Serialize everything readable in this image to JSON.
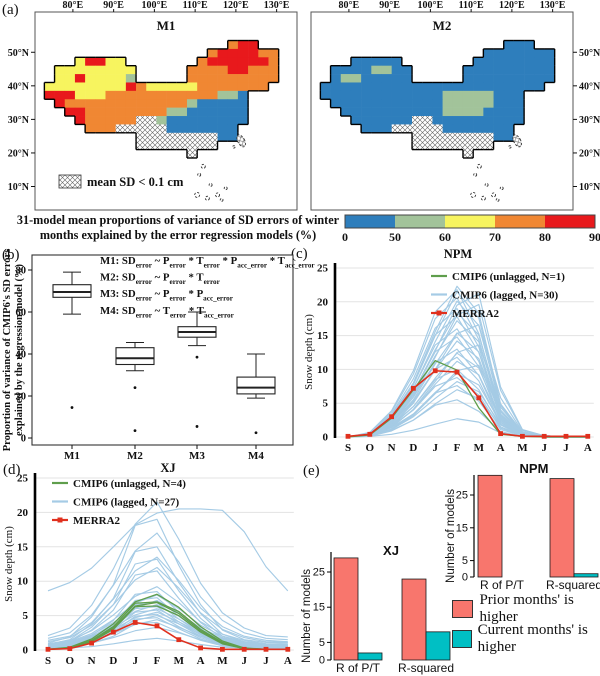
{
  "figure": {
    "panel_labels": {
      "a": "(a)",
      "b": "(b)",
      "c": "(c)",
      "d": "(d)",
      "e": "(e)"
    },
    "caption": {
      "line1": "31-model mean proportions of variance of SD errors of winter",
      "line2": "months explained by the error regression models (%)"
    }
  },
  "e_legend": [
    {
      "label": "Prior months' is higher",
      "color": "#f8766d"
    },
    {
      "label": "Current months' is higher",
      "color": "#00bfc4"
    }
  ],
  "chart_data": [
    {
      "id": "map_m1",
      "type": "heatmap",
      "panel": "a",
      "title": "M1",
      "legend": "mean SD < 0.1 cm",
      "lat_side": "left",
      "lon_ticks": [
        {
          "v": 80,
          "t": "80°E"
        },
        {
          "v": 90,
          "t": "90°E"
        },
        {
          "v": 100,
          "t": "100°E"
        },
        {
          "v": 110,
          "t": "110°E"
        },
        {
          "v": 120,
          "t": "120°E"
        },
        {
          "v": 130,
          "t": "130°E"
        }
      ],
      "lat_ticks": [
        {
          "v": 50,
          "t": "50°N"
        },
        {
          "v": 40,
          "t": "40°N"
        },
        {
          "v": 30,
          "t": "30°N"
        },
        {
          "v": 20,
          "t": "20°N"
        },
        {
          "v": 10,
          "t": "10°N"
        }
      ],
      "palette": {
        "B": "#2e7ebc",
        "G": "#a2c39a",
        "Y": "#f7f45f",
        "O": "#f08733",
        "R": "#e8191c",
        "H": "hatch"
      },
      "legend_note": "H cells = mean SD < 0.1 cm (hatched)",
      "grid": [
        "..................ORR...",
        "................ORRRROO.",
        "...YRRYY.......ORRRRRRO.",
        ".YYYYYYYY.....OOOORROOO.",
        ".YYRYYYYG.....OOOOOOOOO.",
        "YYYYYYYYROYYYYYOOOOOOO..",
        "RRRYYYOOOOOOOOOOOGGB....",
        ".ROOOOOOOOOOOOGBBBBB....",
        "..RROOOOOOOOGGBBBBBB....",
        "...ROOOOOHHGBBBBBBBB....",
        "....OOOHHHHHBBBBBBB.....",
        ".........HHHHHHHHBB.....",
        ".........HHHHHHHH.......",
        "..............H........."
      ]
    },
    {
      "id": "map_m2",
      "type": "heatmap",
      "panel": "a",
      "title": "M2",
      "legend": "",
      "lat_side": "right",
      "lon_ticks": [
        {
          "v": 80,
          "t": "80°E"
        },
        {
          "v": 90,
          "t": "90°E"
        },
        {
          "v": 100,
          "t": "100°E"
        },
        {
          "v": 110,
          "t": "110°E"
        },
        {
          "v": 120,
          "t": "120°E"
        },
        {
          "v": 130,
          "t": "130°E"
        }
      ],
      "lat_ticks": [
        {
          "v": 50,
          "t": "50°N"
        },
        {
          "v": 40,
          "t": "40°N"
        },
        {
          "v": 30,
          "t": "30°N"
        },
        {
          "v": 20,
          "t": "20°N"
        },
        {
          "v": 10,
          "t": "10°N"
        }
      ],
      "palette": {
        "B": "#2e7ebc",
        "G": "#a2c39a",
        "Y": "#f7f45f",
        "O": "#f08733",
        "R": "#e8191c",
        "H": "hatch"
      },
      "grid": [
        "..................BBB...",
        "................BBBBBBB.",
        "...BBBBB.......BBBBBBBB.",
        ".BBBBGGBB.....BBBBBBBBB.",
        ".BGGBBBBB.....BBBBBBBBB.",
        "BBBBBBBBBBBBBBBBBBBBBB..",
        "BBBBBBBBBBBBGGGGGBBB....",
        ".BBBBBBBBBBBGGGGGBBB....",
        "..BBBBBBBBBBGGGGBBBB....",
        "...BBBBBBHHBBBBBBBBB....",
        "....BBBHHHHHBBBBBBB.....",
        ".........HHHHHHHHBB.....",
        ".........HHHHHHHH.......",
        "..............H........."
      ]
    },
    {
      "id": "colorbar",
      "type": "colorbar",
      "ticks": [
        "0",
        "50",
        "60",
        "70",
        "80",
        "90"
      ],
      "colors": [
        "#2e7ebc",
        "#a2c39a",
        "#f7f45f",
        "#f08733",
        "#e8191c"
      ]
    },
    {
      "id": "box",
      "type": "boxplot",
      "panel": "b",
      "categories": [
        "M1",
        "M2",
        "M3",
        "M4"
      ],
      "stats": [
        {
          "lo": 59,
          "q1": 67,
          "med": 69.5,
          "q3": 73,
          "hi": 79,
          "out": [
            14.5
          ]
        },
        {
          "lo": 32,
          "q1": 35,
          "med": 38,
          "q3": 43,
          "hi": 45.5,
          "out": [
            24,
            3.5
          ]
        },
        {
          "lo": 44,
          "q1": 48,
          "med": 50.5,
          "q3": 53,
          "hi": 60,
          "out": [
            38.5,
            5.5
          ]
        },
        {
          "lo": 19,
          "q1": 21,
          "med": 24,
          "q3": 29,
          "hi": 40,
          "out": [
            2.5
          ]
        }
      ],
      "yticks": [
        0,
        20,
        40,
        60,
        80
      ],
      "ylabel_line1": "Proportion of variance of CMIP6's SD errors",
      "ylabel_line2": "explained by the regression model (%)",
      "formulas": [
        "M1: SD_{error} ~ P_{error} * T_{error} * P_{acc_error} * T_{acc_error}",
        "M2: SD_{error} ~ P_{error} * T_{error}",
        "M3: SD_{error} ~ P_{error} * P_{acc_error}",
        "M4: SD_{error} ~ T_{error} * T_{acc_error}"
      ]
    },
    {
      "id": "npm_line",
      "type": "line",
      "panel": "c",
      "title": "NPM",
      "ylabel": "Snow depth (cm)",
      "yticks": [
        0,
        5,
        10,
        15,
        20,
        25
      ],
      "ylim": [
        0,
        25
      ],
      "months": [
        "S",
        "O",
        "N",
        "D",
        "J",
        "F",
        "M",
        "A",
        "M",
        "J",
        "J",
        "A"
      ],
      "legend": [
        {
          "label": "CMIP6 (unlagged, N=1)",
          "color": "#5f9e4c",
          "marker": "line"
        },
        {
          "label": "CMIP6 (lagged, N=30)",
          "color": "#a5cbe5",
          "marker": "line"
        },
        {
          "label": "MERRA2",
          "color": "#e0301e",
          "marker": "line-square"
        }
      ],
      "merra2": [
        0.1,
        0.4,
        3.0,
        7.2,
        9.8,
        9.6,
        5.8,
        0.5,
        0.1,
        0.1,
        0.1,
        0.1
      ],
      "unlagged": [
        [
          0,
          0.3,
          2.8,
          7.0,
          11.3,
          9.9,
          4.3,
          0.4,
          0.1,
          0,
          0,
          0
        ]
      ],
      "lagged": {
        "shapes": {
          "A": [
            0,
            0.02,
            0.13,
            0.36,
            0.7,
            1.0,
            0.82,
            0.22,
            0.03,
            0.01,
            0,
            0
          ],
          "B": [
            0,
            0.03,
            0.18,
            0.45,
            0.85,
            1.0,
            0.7,
            0.15,
            0.02,
            0,
            0,
            0
          ],
          "C": [
            0,
            0.02,
            0.1,
            0.3,
            0.6,
            0.92,
            1.0,
            0.35,
            0.05,
            0.01,
            0,
            0
          ]
        },
        "series": [
          [
            22.3,
            "A"
          ],
          [
            21.8,
            "B"
          ],
          [
            21.5,
            "A"
          ],
          [
            21.2,
            "C"
          ],
          [
            20.6,
            "B"
          ],
          [
            20.1,
            "A"
          ],
          [
            19.6,
            "C"
          ],
          [
            19.0,
            "B"
          ],
          [
            18.4,
            "A"
          ],
          [
            17.8,
            "B"
          ],
          [
            17.2,
            "A"
          ],
          [
            16.6,
            "C"
          ],
          [
            16.0,
            "B"
          ],
          [
            15.4,
            "A"
          ],
          [
            14.8,
            "B"
          ],
          [
            14.2,
            "A"
          ],
          [
            13.6,
            "C"
          ],
          [
            13.0,
            "B"
          ],
          [
            12.4,
            "A"
          ],
          [
            11.8,
            "B"
          ],
          [
            11.2,
            "A"
          ],
          [
            10.6,
            "C"
          ],
          [
            10.0,
            "B"
          ],
          [
            9.4,
            "A"
          ],
          [
            8.8,
            "B"
          ],
          [
            8.2,
            "A"
          ],
          [
            7.6,
            "B"
          ],
          [
            7.0,
            "A"
          ],
          [
            5.5,
            "B"
          ],
          [
            2.7,
            "A"
          ]
        ]
      }
    },
    {
      "id": "xj_line",
      "type": "line",
      "panel": "d",
      "title": "XJ",
      "ylabel": "Snow depth (cm)",
      "yticks": [
        0,
        5,
        10,
        15,
        20,
        25
      ],
      "ylim": [
        0,
        25
      ],
      "months": [
        "S",
        "O",
        "N",
        "D",
        "J",
        "F",
        "M",
        "A",
        "M",
        "J",
        "J",
        "A"
      ],
      "legend": [
        {
          "label": "CMIP6 (unlagged, N=4)",
          "color": "#5f9e4c",
          "marker": "line"
        },
        {
          "label": "CMIP6 (lagged, N=27)",
          "color": "#a5cbe5",
          "marker": "line"
        },
        {
          "label": "MERRA2",
          "color": "#e0301e",
          "marker": "line-square"
        }
      ],
      "merra2": [
        0.1,
        0.2,
        1.0,
        2.6,
        4.0,
        3.5,
        1.5,
        0.3,
        0.1,
        0.1,
        0.1,
        0.1
      ],
      "unlagged": [
        [
          0.1,
          0.4,
          1.6,
          3.8,
          7.0,
          8.1,
          6.2,
          3.4,
          1.3,
          0.3,
          0.1,
          0.1
        ],
        [
          0.1,
          0.3,
          1.4,
          3.4,
          6.8,
          7.0,
          5.6,
          3.0,
          1.1,
          0.2,
          0.1,
          0.1
        ],
        [
          0.1,
          0.3,
          1.3,
          3.2,
          6.4,
          6.9,
          5.3,
          2.8,
          1.0,
          0.2,
          0.1,
          0.1
        ],
        [
          0.1,
          0.2,
          1.2,
          3.0,
          6.3,
          6.4,
          5.0,
          2.6,
          0.9,
          0.2,
          0.1,
          0.1
        ]
      ],
      "lagged": {
        "shapes": {
          "A": [
            0.1,
            0.15,
            0.3,
            0.55,
            0.85,
            1.0,
            0.75,
            0.45,
            0.25,
            0.15,
            0.1,
            0.09
          ],
          "B": [
            0.05,
            0.1,
            0.25,
            0.5,
            0.95,
            1.0,
            0.65,
            0.35,
            0.15,
            0.08,
            0.06,
            0.05
          ],
          "C": [
            0.42,
            0.48,
            0.58,
            0.73,
            0.89,
            0.97,
            1.0,
            1.0,
            0.99,
            0.84,
            0.59,
            0.42
          ]
        },
        "series": [
          [
            20.5,
            "C"
          ],
          [
            21.5,
            "A"
          ],
          [
            19.0,
            "B"
          ],
          [
            17.0,
            "A"
          ],
          [
            15.0,
            "B"
          ],
          [
            13.5,
            "A"
          ],
          [
            13.2,
            "B"
          ],
          [
            12.0,
            "A"
          ],
          [
            11.5,
            "B"
          ],
          [
            9.2,
            "A"
          ],
          [
            8.5,
            "B"
          ],
          [
            8.0,
            "A"
          ],
          [
            7.6,
            "B"
          ],
          [
            7.2,
            "A"
          ],
          [
            6.9,
            "B"
          ],
          [
            6.6,
            "A"
          ],
          [
            6.3,
            "B"
          ],
          [
            6.0,
            "A"
          ],
          [
            5.8,
            "B"
          ],
          [
            5.5,
            "A"
          ],
          [
            5.2,
            "B"
          ],
          [
            5.0,
            "A"
          ],
          [
            4.7,
            "B"
          ],
          [
            4.4,
            "A"
          ],
          [
            4.0,
            "B"
          ],
          [
            3.3,
            "A"
          ],
          [
            1.7,
            "A"
          ]
        ]
      }
    },
    {
      "id": "xj_bar",
      "type": "bar",
      "panel": "e",
      "title": "XJ",
      "ylabel": "Number of models",
      "yticks": [
        0,
        5,
        15,
        25
      ],
      "categories": [
        "R of P/T",
        "R-squared"
      ],
      "series": [
        {
          "name": "Prior months' is higher",
          "color": "#f8766d",
          "values": [
            29,
            23
          ]
        },
        {
          "name": "Current months' is higher",
          "color": "#00bfc4",
          "values": [
            2,
            8
          ]
        }
      ]
    },
    {
      "id": "npm_bar",
      "type": "bar",
      "panel": "e",
      "title": "NPM",
      "ylabel": "Number of models",
      "yticks": [
        0,
        5,
        15,
        25
      ],
      "categories": [
        "R of P/T",
        "R-squared"
      ],
      "series": [
        {
          "name": "Prior months' is higher",
          "color": "#f8766d",
          "values": [
            31,
            30
          ]
        },
        {
          "name": "Current months' is higher",
          "color": "#00bfc4",
          "values": [
            0,
            1
          ]
        }
      ]
    }
  ]
}
